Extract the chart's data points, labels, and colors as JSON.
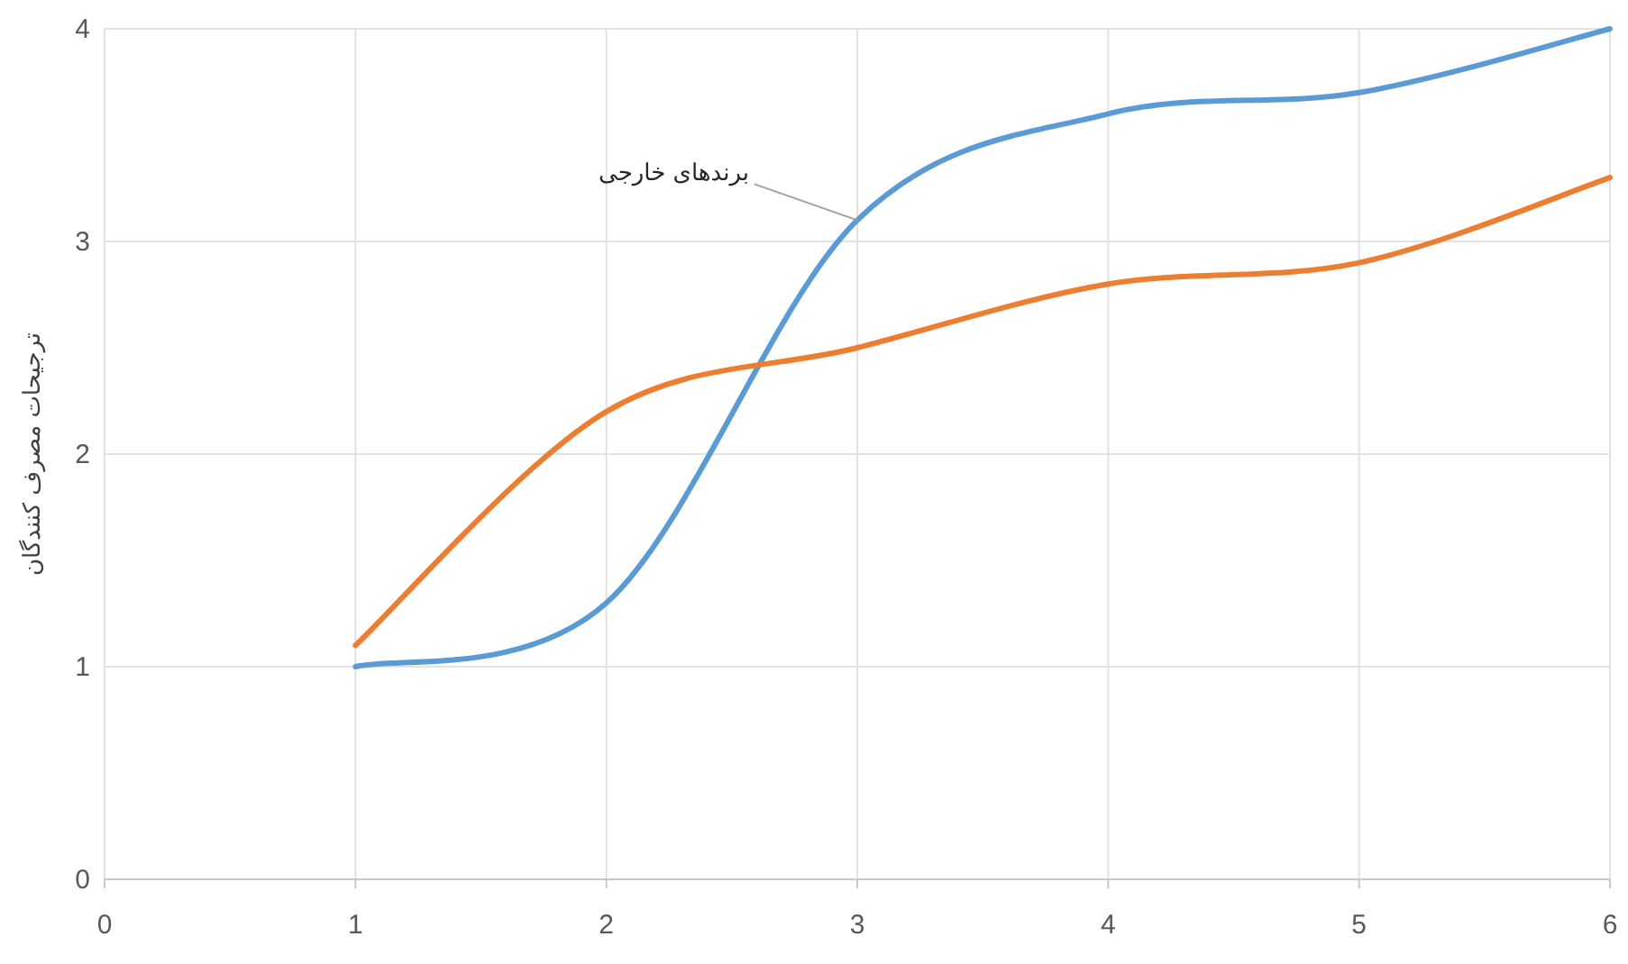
{
  "chart_data": {
    "type": "line",
    "ylabel": "ترجیحات مصرف کنندگان",
    "x": [
      1,
      2,
      3,
      4,
      5,
      6
    ],
    "series": [
      {
        "name": "برندهای خارجی",
        "color": "#5b9bd5",
        "values": [
          1.0,
          1.3,
          3.1,
          3.6,
          3.7,
          4.0
        ]
      },
      {
        "color": "#ed7d31",
        "values": [
          1.1,
          2.2,
          2.5,
          2.8,
          2.9,
          3.3
        ]
      }
    ],
    "xlim": [
      0,
      6
    ],
    "ylim": [
      0,
      4
    ],
    "xticks": [
      0,
      1,
      2,
      3,
      4,
      5,
      6
    ],
    "yticks": [
      0,
      1,
      2,
      3,
      4
    ],
    "grid": true,
    "line_style": "solid",
    "marker": "none"
  }
}
